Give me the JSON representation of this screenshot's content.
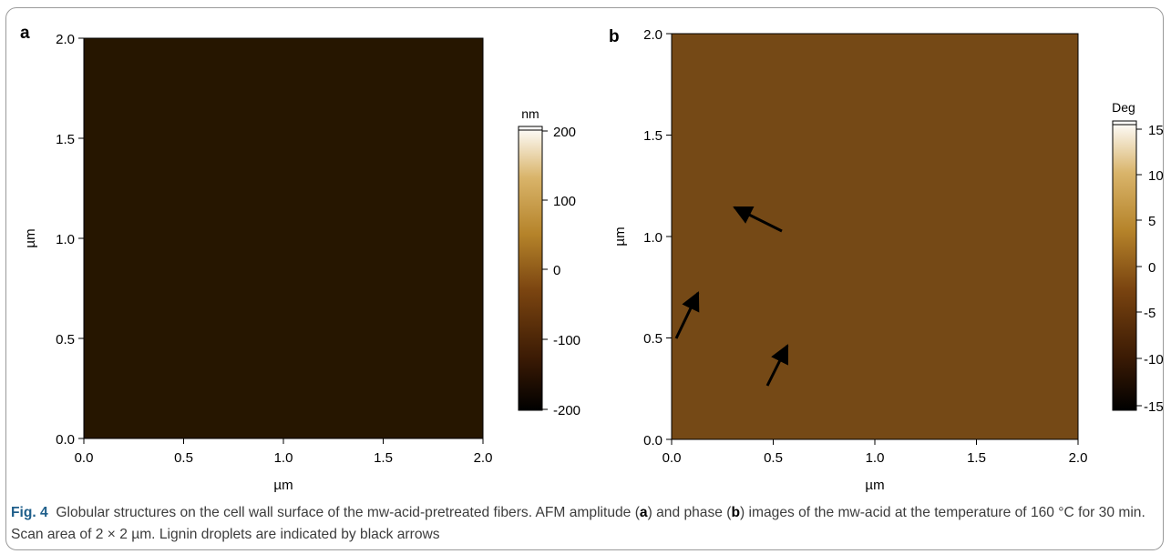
{
  "panels": [
    {
      "letter": "a",
      "x_ticks": [
        "0.0",
        "0.5",
        "1.0",
        "1.5",
        "2.0"
      ],
      "y_ticks": [
        "0.0",
        "0.5",
        "1.0",
        "1.5",
        "2.0"
      ],
      "xlabel": "µm",
      "ylabel": "µm",
      "colorbar_unit": "nm",
      "colorbar_ticks": [
        "200",
        "100",
        "0",
        "-100",
        "-200"
      ],
      "colors": [
        "#000000",
        "#3a1a04",
        "#7a4410",
        "#b5832a",
        "#d9b46a",
        "#ffffff"
      ]
    },
    {
      "letter": "b",
      "x_ticks": [
        "0.0",
        "0.5",
        "1.0",
        "1.5",
        "2.0"
      ],
      "y_ticks": [
        "0.0",
        "0.5",
        "1.0",
        "1.5",
        "2.0"
      ],
      "xlabel": "µm",
      "ylabel": "µm",
      "colorbar_unit": "Deg",
      "colorbar_ticks": [
        "15",
        "10",
        "5",
        "0",
        "-5",
        "-10",
        "-15"
      ],
      "colors": [
        "#000000",
        "#3a1a04",
        "#7a4410",
        "#b5832a",
        "#d9b46a",
        "#ffffff"
      ]
    }
  ],
  "caption": {
    "label": "Fig. 4",
    "before_a": "Globular structures on the cell wall surface of the mw-acid-pretreated fibers. AFM amplitude (",
    "a": "a",
    "between": ") and phase (",
    "b": "b",
    "after_b": ") images of the mw-acid at the temperature of 160 °C for 30 min. Scan area of 2 × 2 µm. Lignin droplets are indicated by black arrows"
  }
}
